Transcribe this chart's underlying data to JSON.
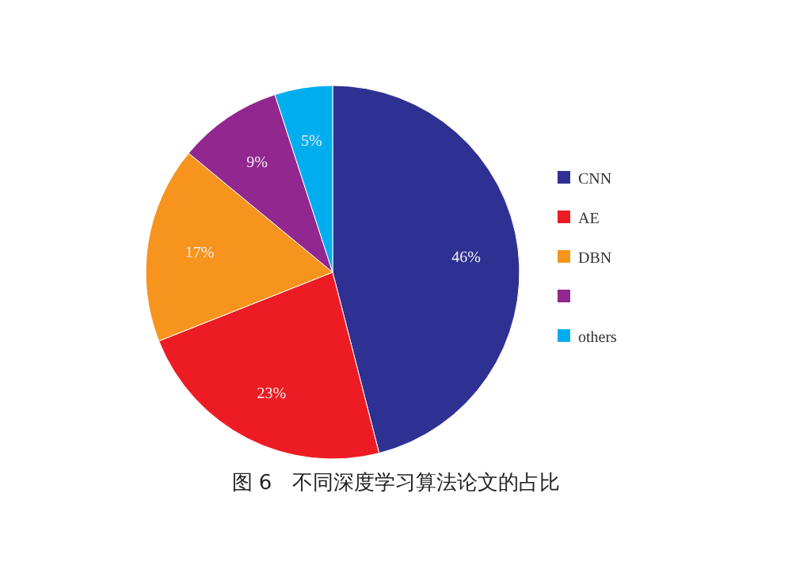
{
  "chart_data": {
    "type": "pie",
    "title": "图 6　不同深度学习算法论文的占比",
    "categories": [
      "CNN",
      "AE",
      "DBN",
      null,
      "others"
    ],
    "values": [
      46,
      23,
      17,
      9,
      5
    ],
    "colors": [
      "#2e3192",
      "#ed1c24",
      "#f7941d",
      "#92278f",
      "#00aeef"
    ],
    "value_labels": [
      "46%",
      "23%",
      "17%",
      "9%",
      "5%"
    ],
    "legend": "right"
  }
}
